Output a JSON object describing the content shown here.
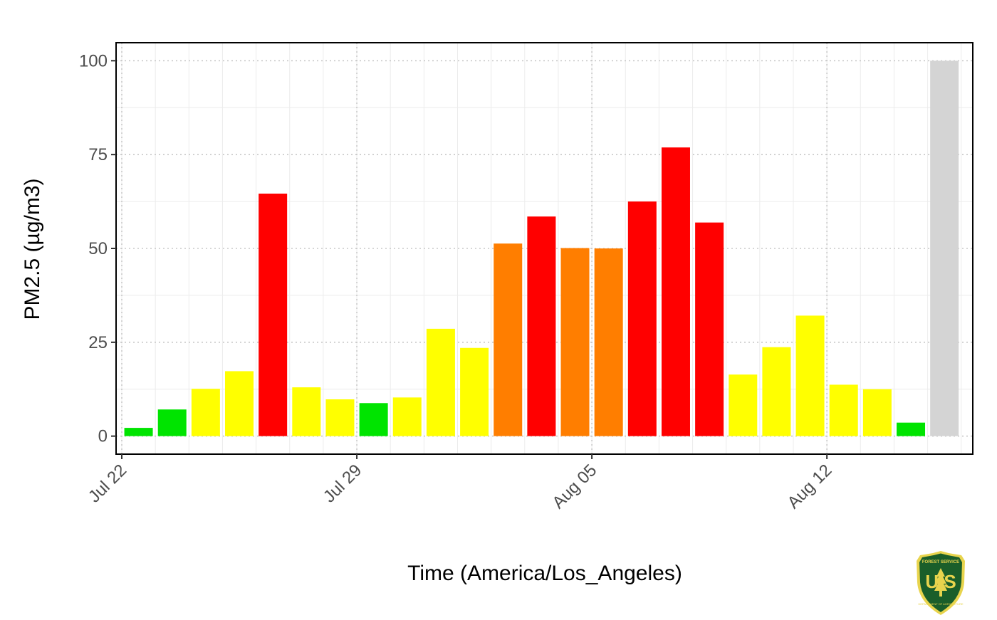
{
  "chart_data": {
    "type": "bar",
    "title": "",
    "xlabel": "Time (America/Los_Angeles)",
    "ylabel": "PM2.5 (µg/m3)",
    "ylim": [
      -4.8,
      104.8
    ],
    "y_ticks": [
      0,
      25,
      50,
      75,
      100
    ],
    "x_ticks": [
      {
        "label": "Jul 22",
        "day": 0
      },
      {
        "label": "Jul 29",
        "day": 7
      },
      {
        "label": "Aug 05",
        "day": 14
      },
      {
        "label": "Aug 12",
        "day": 21
      }
    ],
    "x_dates": [
      "2023-07-22",
      "2023-07-23",
      "2023-07-24",
      "2023-07-25",
      "2023-07-26",
      "2023-07-27",
      "2023-07-28",
      "2023-07-29",
      "2023-07-30",
      "2023-07-31",
      "2023-08-01",
      "2023-08-02",
      "2023-08-03",
      "2023-08-04",
      "2023-08-05",
      "2023-08-06",
      "2023-08-07",
      "2023-08-08",
      "2023-08-09",
      "2023-08-10",
      "2023-08-11",
      "2023-08-12",
      "2023-08-13",
      "2023-08-14",
      "2023-08-15"
    ],
    "values": [
      2.2,
      7.1,
      12.6,
      17.3,
      64.6,
      13.0,
      9.8,
      8.8,
      10.3,
      28.6,
      23.5,
      51.3,
      58.5,
      50.1,
      50.0,
      62.5,
      76.9,
      56.9,
      16.4,
      23.7,
      32.1,
      13.7,
      12.5,
      3.6,
      100.0
    ],
    "colors": [
      "#00e400",
      "#00e400",
      "#ffff00",
      "#ffff00",
      "#ff0000",
      "#ffff00",
      "#ffff00",
      "#00e400",
      "#ffff00",
      "#ffff00",
      "#ffff00",
      "#ff7e00",
      "#ff0000",
      "#ff7e00",
      "#ff7e00",
      "#ff0000",
      "#ff0000",
      "#ff0000",
      "#ffff00",
      "#ffff00",
      "#ffff00",
      "#ffff00",
      "#ffff00",
      "#00e400",
      "#d4d4d4"
    ],
    "grid": true,
    "legend": "none"
  },
  "logo": {
    "name": "forest-service-shield",
    "top_text": "FOREST SERVICE",
    "letters": "U S",
    "bottom_text": "DEPARTMENT OF AGRICULTURE",
    "colors": {
      "shield": "#1a5e2a",
      "trim": "#e8d44d"
    }
  }
}
